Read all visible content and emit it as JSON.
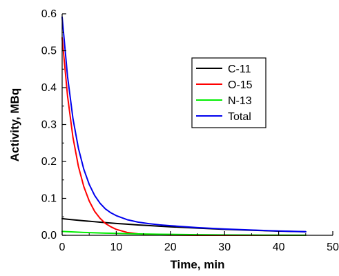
{
  "chart_data": {
    "type": "line",
    "title": "",
    "xlabel": "Time, min",
    "ylabel": "Activity, MBq",
    "xlim": [
      0,
      50
    ],
    "ylim": [
      0,
      0.6
    ],
    "x_ticks": [
      0,
      10,
      20,
      30,
      40,
      50
    ],
    "y_ticks": [
      0.0,
      0.1,
      0.2,
      0.3,
      0.4,
      0.5,
      0.6
    ],
    "x_tick_labels": [
      "0",
      "10",
      "20",
      "30",
      "40",
      "50"
    ],
    "y_tick_labels": [
      "0.0",
      "0.1",
      "0.2",
      "0.3",
      "0.4",
      "0.5",
      "0.6"
    ],
    "grid": false,
    "legend_position": "top-right",
    "x": [
      0,
      1,
      2,
      3,
      4,
      5,
      6,
      7,
      8,
      9,
      10,
      12,
      14,
      16,
      18,
      20,
      25,
      30,
      35,
      40,
      45
    ],
    "series": [
      {
        "name": "C-11",
        "color": "#000000",
        "values": [
          0.045,
          0.0435,
          0.0421,
          0.0407,
          0.0393,
          0.038,
          0.0368,
          0.0356,
          0.0344,
          0.0332,
          0.0321,
          0.0301,
          0.0281,
          0.0263,
          0.0246,
          0.023,
          0.0193,
          0.0161,
          0.0135,
          0.0113,
          0.0095
        ]
      },
      {
        "name": "O-15",
        "color": "#ff0000",
        "values": [
          0.535,
          0.377,
          0.265,
          0.187,
          0.132,
          0.093,
          0.065,
          0.046,
          0.032,
          0.023,
          0.016,
          0.0078,
          0.0039,
          0.0019,
          0.001,
          0.0005,
          0.0,
          0.0,
          0.0,
          0.0,
          0.0
        ]
      },
      {
        "name": "N-13",
        "color": "#00ee00",
        "values": [
          0.0105,
          0.0098,
          0.0091,
          0.0084,
          0.0078,
          0.0073,
          0.0068,
          0.0063,
          0.0059,
          0.0055,
          0.0051,
          0.0044,
          0.0038,
          0.0033,
          0.0028,
          0.0025,
          0.0016,
          0.001,
          0.0007,
          0.0004,
          0.0003
        ]
      },
      {
        "name": "Total",
        "color": "#0000ee",
        "values": [
          0.591,
          0.43,
          0.316,
          0.236,
          0.179,
          0.138,
          0.108,
          0.0869,
          0.0713,
          0.0609,
          0.0532,
          0.0423,
          0.0358,
          0.0315,
          0.0284,
          0.026,
          0.0209,
          0.0171,
          0.0142,
          0.0117,
          0.0098
        ]
      }
    ]
  }
}
